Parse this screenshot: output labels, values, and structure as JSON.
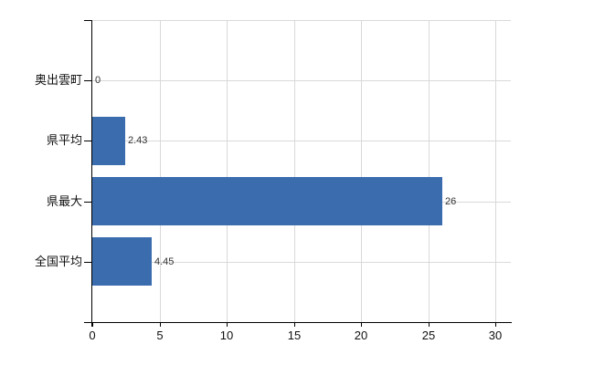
{
  "chart_data": {
    "type": "bar",
    "orientation": "horizontal",
    "title": "",
    "xlabel": "",
    "ylabel": "",
    "categories": [
      "奥出雲町",
      "県平均",
      "県最大",
      "全国平均"
    ],
    "values": [
      0,
      2.43,
      26,
      4.45
    ],
    "value_labels": [
      "0",
      "2.43",
      "26",
      "4.45"
    ],
    "x_ticks": [
      0,
      5,
      10,
      15,
      20,
      25,
      30
    ],
    "x_tick_labels": [
      "0",
      "5",
      "10",
      "15",
      "20",
      "25",
      "30"
    ],
    "xlim": [
      0,
      31.2
    ],
    "grid": true,
    "legend": false,
    "colors": {
      "bar": "#3b6cae",
      "axis": "#000000",
      "gridline": "#d9d9d9",
      "tick_label": "#111111",
      "value_label": "#333333",
      "background": "#ffffff"
    }
  }
}
